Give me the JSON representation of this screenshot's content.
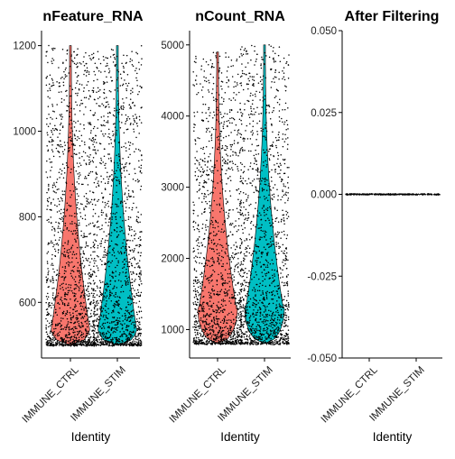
{
  "chart_data": [
    {
      "type": "violin",
      "title": "nFeature_RNA",
      "xlabel": "Identity",
      "ylabel": "",
      "categories": [
        "IMMUNE_CTRL",
        "IMMUNE_STIM"
      ],
      "ylim": [
        470,
        1235
      ],
      "yticks": [
        600,
        800,
        1000,
        1200
      ],
      "ytick_labels": [
        "600",
        "800",
        "1000",
        "1200"
      ],
      "series": [
        {
          "category": "IMMUNE_CTRL",
          "min": 500,
          "max": 1200,
          "mode": 545,
          "color": "#F8766D"
        },
        {
          "category": "IMMUNE_STIM",
          "min": 500,
          "max": 1200,
          "mode": 545,
          "color": "#00BFC4"
        }
      ],
      "points_shown": true,
      "grid": false
    },
    {
      "type": "violin",
      "title": "nCount_RNA",
      "xlabel": "Identity",
      "ylabel": "",
      "categories": [
        "IMMUNE_CTRL",
        "IMMUNE_STIM"
      ],
      "ylim": [
        600,
        5200
      ],
      "yticks": [
        1000,
        2000,
        3000,
        4000,
        5000
      ],
      "ytick_labels": [
        "1000",
        "2000",
        "3000",
        "4000",
        "5000"
      ],
      "series": [
        {
          "category": "IMMUNE_CTRL",
          "min": 800,
          "max": 4900,
          "mode": 1300,
          "color": "#F8766D"
        },
        {
          "category": "IMMUNE_STIM",
          "min": 800,
          "max": 5000,
          "mode": 1300,
          "color": "#00BFC4"
        }
      ],
      "points_shown": true,
      "grid": false
    },
    {
      "type": "violin",
      "title": "After Filtering",
      "xlabel": "Identity",
      "ylabel": "",
      "categories": [
        "IMMUNE_CTRL",
        "IMMUNE_STIM"
      ],
      "ylim": [
        -0.05,
        0.05
      ],
      "yticks": [
        -0.05,
        -0.025,
        0,
        0.025,
        0.05
      ],
      "ytick_labels": [
        "-0.050",
        "-0.025",
        "0.000",
        "0.025",
        "0.050"
      ],
      "series": [
        {
          "category": "IMMUNE_CTRL",
          "value": 0,
          "color": "#000000"
        },
        {
          "category": "IMMUNE_STIM",
          "value": 0,
          "color": "#000000"
        }
      ],
      "points_shown": true,
      "grid": false
    }
  ]
}
